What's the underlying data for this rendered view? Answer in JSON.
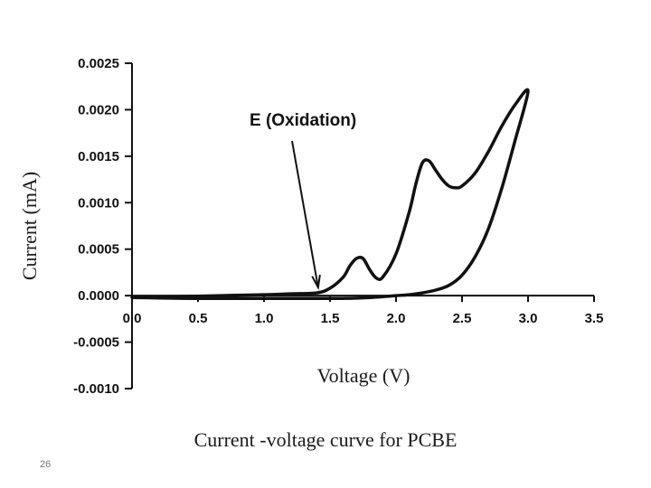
{
  "caption": "Current -voltage curve for PCBE",
  "slide_number": "26",
  "chart_data": {
    "type": "line",
    "title": "",
    "xlabel": "Voltage (V)",
    "ylabel": "Current (mA)",
    "xlim": [
      0,
      3.5
    ],
    "ylim": [
      -0.001,
      0.0025
    ],
    "x_ticks": [
      "0.0",
      "0.5",
      "1.0",
      "1.5",
      "2.0",
      "2.5",
      "3.0",
      "3.5"
    ],
    "y_ticks": [
      "0.0025",
      "0.0020",
      "0.0015",
      "0.0010",
      "0.0005",
      "0.0000",
      "-0.0005",
      "-0.0010"
    ],
    "grid": false,
    "legend": "none",
    "annotation": {
      "text": "E (Oxidation)",
      "points_to": {
        "x": 1.41,
        "y": 5e-05
      }
    },
    "series": [
      {
        "x": [
          0.0,
          0.5,
          1.0,
          1.2,
          1.4,
          1.5,
          1.6,
          1.65,
          1.7,
          1.75,
          1.8,
          1.85,
          1.9,
          2.0,
          2.1,
          2.15,
          2.2,
          2.25,
          2.3,
          2.35,
          2.4,
          2.45,
          2.5,
          2.6,
          2.7,
          2.8,
          2.9,
          3.0,
          2.9,
          2.8,
          2.7,
          2.6,
          2.5,
          2.4,
          2.3,
          2.2,
          2.1,
          2.0,
          1.8,
          1.6,
          1.5,
          1.4,
          1.2,
          1.0,
          0.5,
          0.0
        ],
        "y": [
          -2e-05,
          -5e-06,
          1e-05,
          2e-05,
          3e-05,
          8e-05,
          0.0002,
          0.00032,
          0.0004,
          0.0004,
          0.00028,
          0.00019,
          0.0002,
          0.00045,
          0.0009,
          0.0012,
          0.00143,
          0.00145,
          0.00135,
          0.00125,
          0.00118,
          0.00116,
          0.00118,
          0.00132,
          0.00155,
          0.00182,
          0.00205,
          0.0022,
          0.00166,
          0.00115,
          0.00072,
          0.00042,
          0.00022,
          0.00011,
          6e-05,
          3e-05,
          1e-05,
          0.0,
          -2e-05,
          -3e-05,
          -3e-05,
          -3e-05,
          -3e-05,
          -3e-05,
          -3e-05,
          -2e-05
        ]
      }
    ]
  }
}
